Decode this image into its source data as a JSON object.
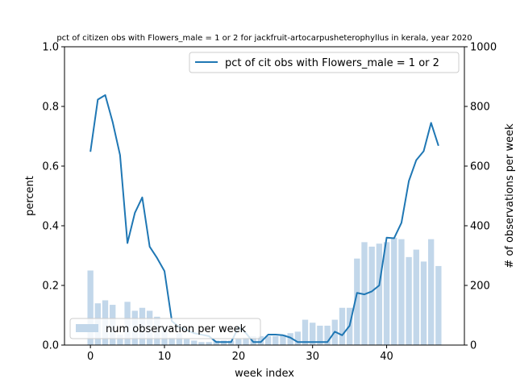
{
  "chart_data": {
    "type": "bar+line",
    "title": "pct of citizen obs with Flowers_male = 1 or 2 for jackfruit-artocarpusheterophyllus in kerala, year 2020",
    "xlabel": "week index",
    "ylabel_left": "percent",
    "ylabel_right": "# of observations per week",
    "xlim": [
      -3.5,
      50.5
    ],
    "ylim_left": [
      0,
      1.0
    ],
    "ylim_right": [
      0,
      1000
    ],
    "x_ticks": [
      0,
      10,
      20,
      30,
      40
    ],
    "y_left_ticks": [
      0.0,
      0.2,
      0.4,
      0.6,
      0.8,
      1.0
    ],
    "y_left_tick_labels": [
      "0.0",
      "0.2",
      "0.4",
      "0.6",
      "0.8",
      "1.0"
    ],
    "y_right_ticks": [
      0,
      200,
      400,
      600,
      800,
      1000
    ],
    "legend_line_position": "upper-right",
    "legend_bar_position": "lower-left",
    "bar_series": {
      "name": "num observation per week",
      "color": "#c2d7ea",
      "x": [
        0,
        1,
        2,
        3,
        4,
        5,
        6,
        7,
        8,
        9,
        10,
        11,
        12,
        13,
        14,
        15,
        16,
        17,
        18,
        19,
        20,
        21,
        22,
        23,
        24,
        25,
        26,
        27,
        28,
        29,
        30,
        31,
        32,
        33,
        34,
        35,
        36,
        37,
        38,
        39,
        40,
        41,
        42,
        43,
        44,
        45,
        46,
        47
      ],
      "values": [
        250,
        140,
        150,
        135,
        35,
        145,
        115,
        125,
        115,
        95,
        60,
        25,
        40,
        20,
        15,
        10,
        10,
        15,
        15,
        15,
        20,
        25,
        30,
        30,
        30,
        30,
        35,
        40,
        45,
        85,
        75,
        65,
        65,
        85,
        125,
        125,
        290,
        345,
        330,
        340,
        345,
        360,
        355,
        295,
        320,
        280,
        355,
        265
      ]
    },
    "line_series": {
      "name": "pct of cit obs with Flowers_male = 1 or 2",
      "color": "#1f77b4",
      "x": [
        0,
        1,
        2,
        3,
        4,
        5,
        6,
        7,
        8,
        9,
        10,
        11,
        12,
        13,
        14,
        15,
        16,
        17,
        18,
        19,
        20,
        21,
        22,
        23,
        24,
        25,
        26,
        27,
        28,
        29,
        30,
        31,
        32,
        33,
        34,
        35,
        36,
        37,
        38,
        39,
        40,
        41,
        42,
        43,
        44,
        45,
        46,
        47
      ],
      "values": [
        0.648,
        0.823,
        0.838,
        0.748,
        0.637,
        0.342,
        0.443,
        0.495,
        0.33,
        0.292,
        0.248,
        0.08,
        0.06,
        0.05,
        0.04,
        0.035,
        0.03,
        0.01,
        0.01,
        0.01,
        0.06,
        0.04,
        0.01,
        0.01,
        0.035,
        0.035,
        0.033,
        0.025,
        0.01,
        0.01,
        0.01,
        0.01,
        0.01,
        0.045,
        0.033,
        0.065,
        0.175,
        0.17,
        0.18,
        0.2,
        0.36,
        0.358,
        0.41,
        0.55,
        0.62,
        0.65,
        0.745,
        0.668
      ]
    }
  }
}
